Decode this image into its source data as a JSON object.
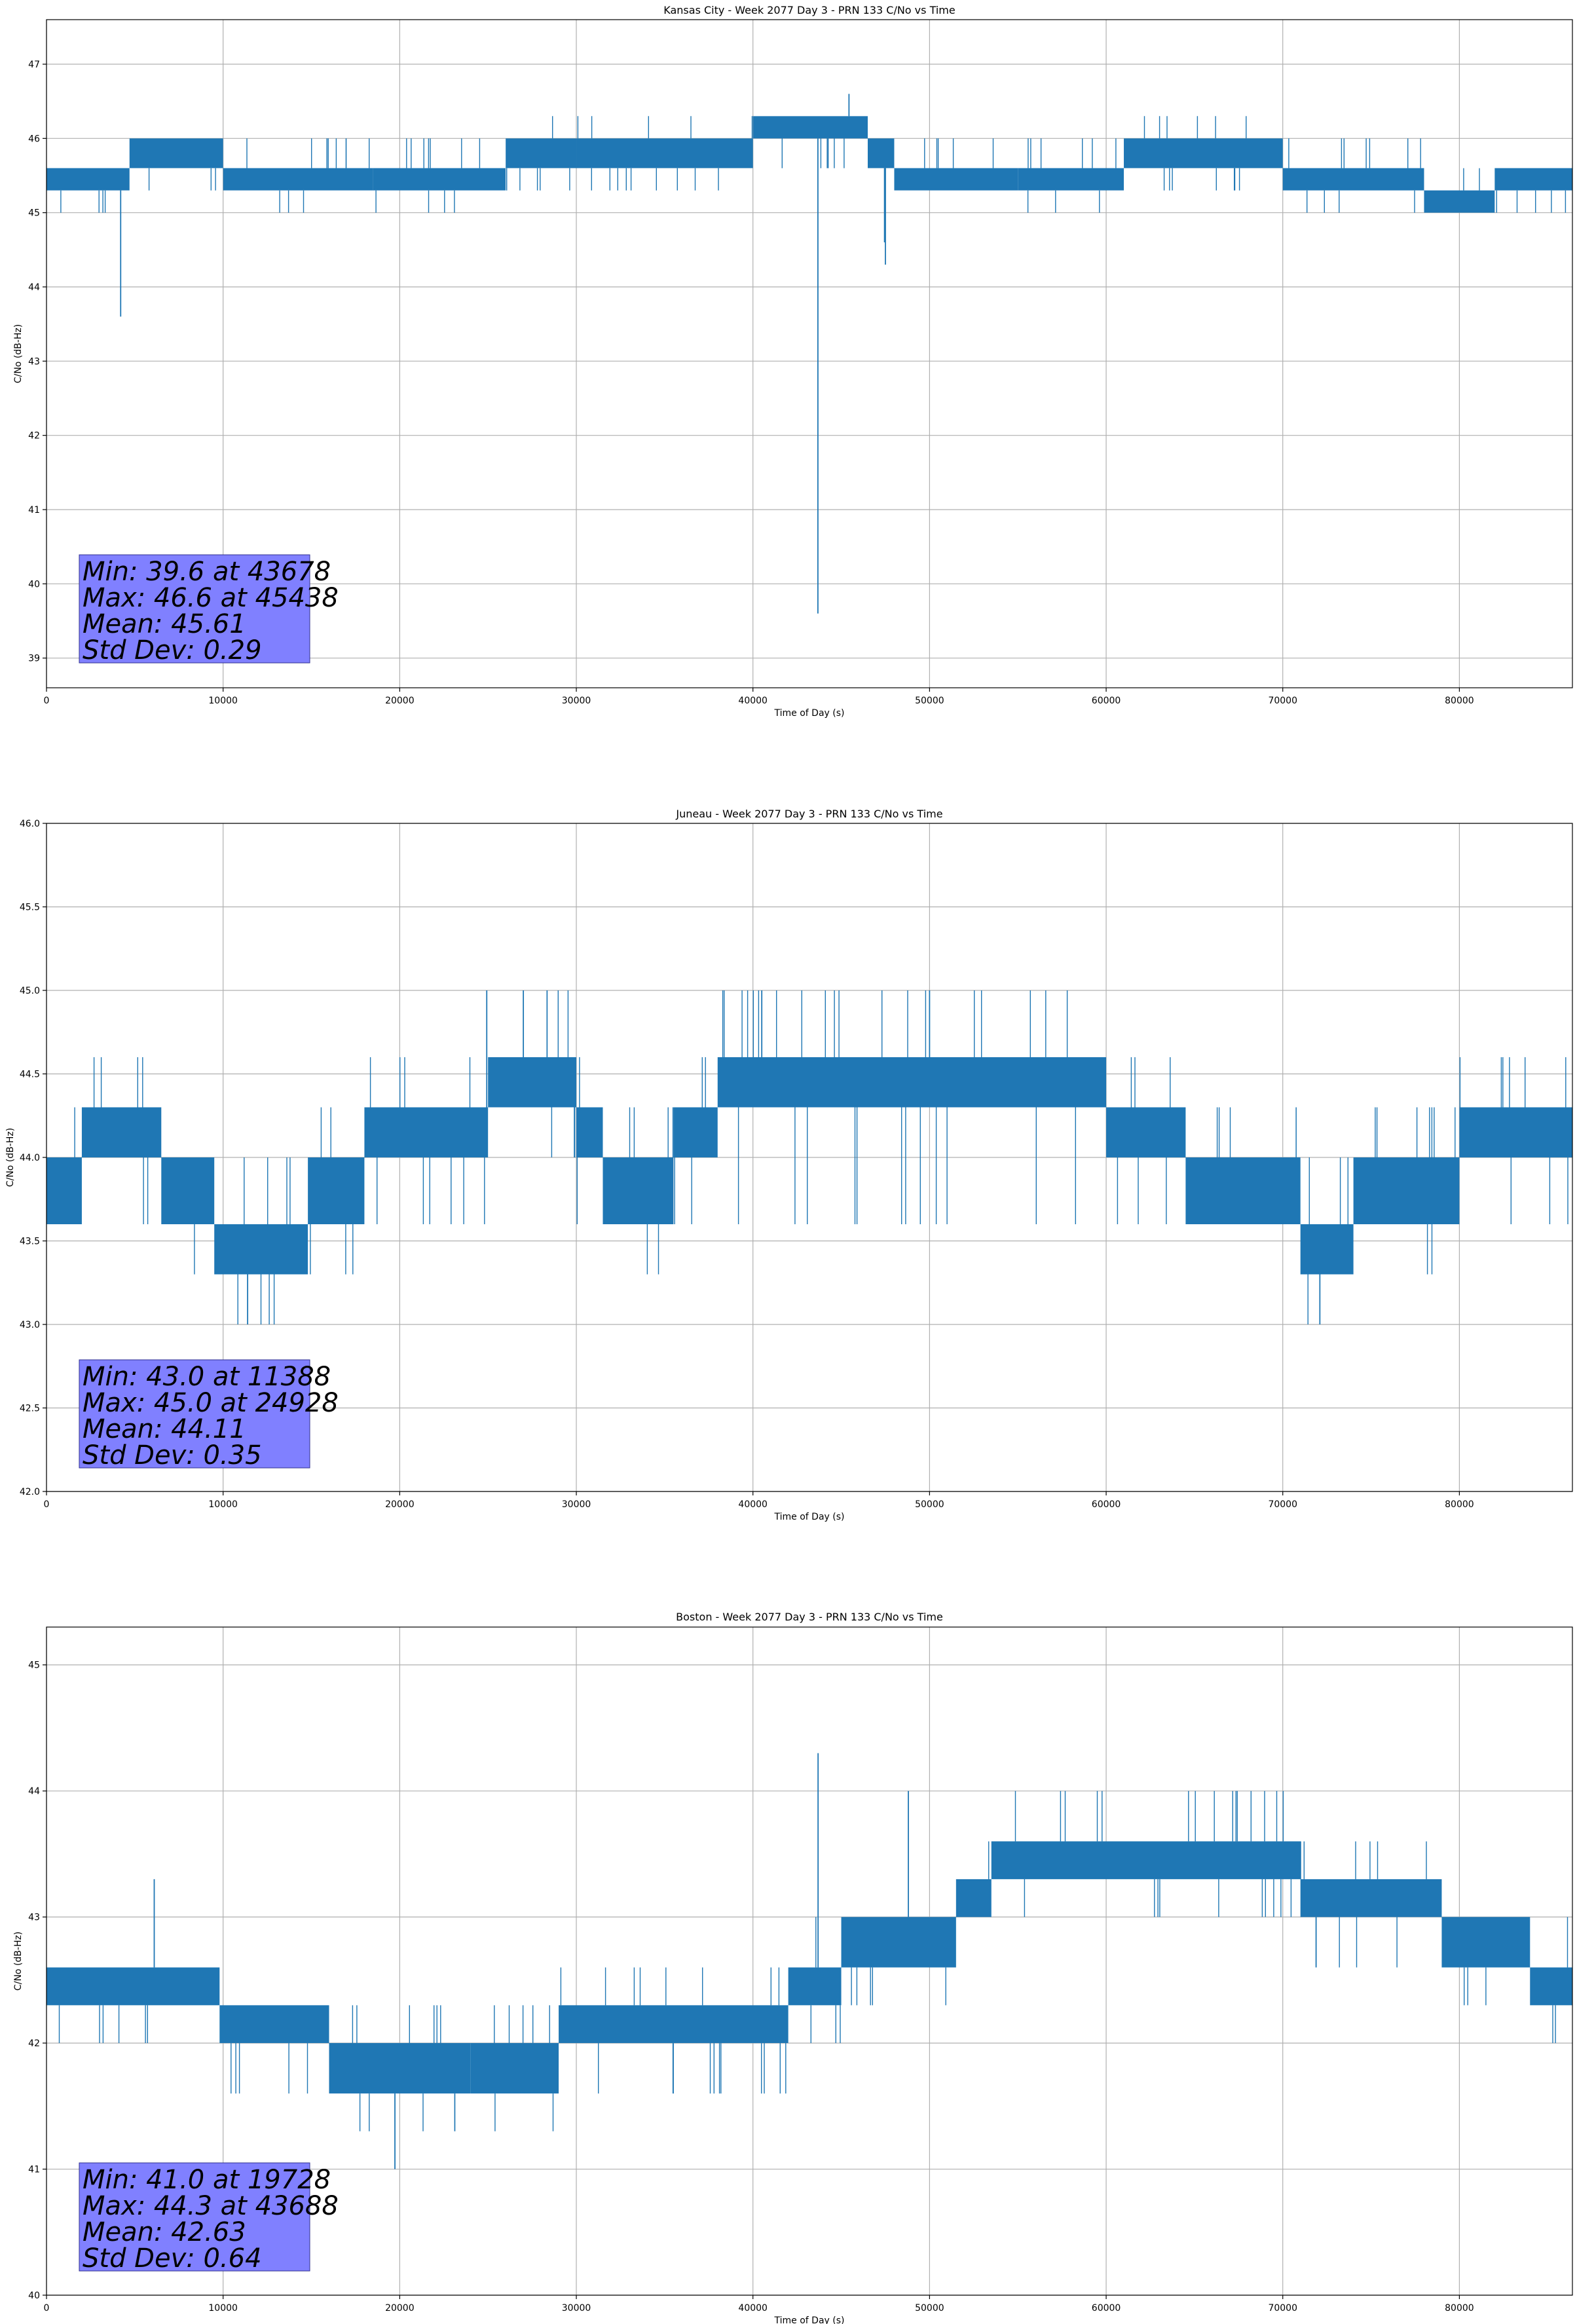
{
  "colors": {
    "line": "#1f77b4",
    "stats_box": "#8080ff",
    "grid": "#b0b0b0"
  },
  "chart_data": [
    {
      "type": "line",
      "title": "Kansas City - Week 2077 Day 3 - PRN 133 C/No vs Time",
      "xlabel": "Time of Day (s)",
      "ylabel": "C/No (dB-Hz)",
      "xlim": [
        0,
        86400
      ],
      "ylim": [
        38.6,
        47.6
      ],
      "xticks": [
        0,
        10000,
        20000,
        30000,
        40000,
        50000,
        60000,
        70000,
        80000
      ],
      "yticks": [
        39,
        40,
        41,
        42,
        43,
        44,
        45,
        46,
        47
      ],
      "ytick_labels": [
        "39",
        "40",
        "41",
        "42",
        "43",
        "44",
        "45",
        "46",
        "47"
      ],
      "grid": true,
      "stats_lines": [
        "Min: 39.6 at 43678",
        "Max: 46.6 at 45438",
        "Mean: 45.61",
        "Std Dev: 0.29"
      ],
      "segments": [
        {
          "x0": 0,
          "x1": 4700,
          "lo": 45.3,
          "hi": 45.6,
          "lo_ext": 45.0,
          "hi_ext": 45.6
        },
        {
          "x0": 4700,
          "x1": 10000,
          "lo": 45.6,
          "hi": 46.0,
          "lo_ext": 45.3,
          "hi_ext": 46.0
        },
        {
          "x0": 10000,
          "x1": 18500,
          "lo": 45.3,
          "hi": 45.6,
          "lo_ext": 45.0,
          "hi_ext": 46.0
        },
        {
          "x0": 18500,
          "x1": 26000,
          "lo": 45.3,
          "hi": 45.6,
          "lo_ext": 45.0,
          "hi_ext": 46.0
        },
        {
          "x0": 26000,
          "x1": 30000,
          "lo": 45.6,
          "hi": 46.0,
          "lo_ext": 45.3,
          "hi_ext": 46.3
        },
        {
          "x0": 30000,
          "x1": 40000,
          "lo": 45.6,
          "hi": 46.0,
          "lo_ext": 45.3,
          "hi_ext": 46.3
        },
        {
          "x0": 40000,
          "x1": 46500,
          "lo": 46.0,
          "hi": 46.3,
          "lo_ext": 45.6,
          "hi_ext": 46.3
        },
        {
          "x0": 46500,
          "x1": 48000,
          "lo": 45.6,
          "hi": 46.0,
          "lo_ext": 45.3,
          "hi_ext": 46.0
        },
        {
          "x0": 48000,
          "x1": 55000,
          "lo": 45.3,
          "hi": 45.6,
          "lo_ext": 45.3,
          "hi_ext": 46.0
        },
        {
          "x0": 55000,
          "x1": 61000,
          "lo": 45.3,
          "hi": 45.6,
          "lo_ext": 45.0,
          "hi_ext": 46.0
        },
        {
          "x0": 61000,
          "x1": 70000,
          "lo": 45.6,
          "hi": 46.0,
          "lo_ext": 45.3,
          "hi_ext": 46.3
        },
        {
          "x0": 70000,
          "x1": 78000,
          "lo": 45.3,
          "hi": 45.6,
          "lo_ext": 45.0,
          "hi_ext": 46.0
        },
        {
          "x0": 78000,
          "x1": 82000,
          "lo": 45.0,
          "hi": 45.3,
          "lo_ext": 45.0,
          "hi_ext": 45.6
        },
        {
          "x0": 82000,
          "x1": 86400,
          "lo": 45.3,
          "hi": 45.6,
          "lo_ext": 45.0,
          "hi_ext": 45.6
        }
      ],
      "spikes": [
        [
          4200,
          43.6
        ],
        [
          43678,
          39.6
        ],
        [
          45438,
          46.6
        ],
        [
          47500,
          44.3
        ],
        [
          47450,
          44.6
        ]
      ]
    },
    {
      "type": "line",
      "title": "Juneau - Week 2077 Day 3 - PRN 133 C/No vs Time",
      "xlabel": "Time of Day (s)",
      "ylabel": "C/No (dB-Hz)",
      "xlim": [
        0,
        86400
      ],
      "ylim": [
        42.0,
        46.0
      ],
      "xticks": [
        0,
        10000,
        20000,
        30000,
        40000,
        50000,
        60000,
        70000,
        80000
      ],
      "yticks": [
        42.0,
        42.5,
        43.0,
        43.5,
        44.0,
        44.5,
        45.0,
        45.5,
        46.0
      ],
      "ytick_labels": [
        "42.0",
        "42.5",
        "43.0",
        "43.5",
        "44.0",
        "44.5",
        "45.0",
        "45.5",
        "46.0"
      ],
      "grid": true,
      "stats_lines": [
        "Min: 43.0 at 11388",
        "Max: 45.0 at 24928",
        "Mean: 44.11",
        "Std Dev: 0.35"
      ],
      "segments": [
        {
          "x0": 0,
          "x1": 2000,
          "lo": 43.6,
          "hi": 44.0,
          "lo_ext": 43.6,
          "hi_ext": 44.3
        },
        {
          "x0": 2000,
          "x1": 6500,
          "lo": 44.0,
          "hi": 44.3,
          "lo_ext": 43.6,
          "hi_ext": 44.6
        },
        {
          "x0": 6500,
          "x1": 9500,
          "lo": 43.6,
          "hi": 44.0,
          "lo_ext": 43.3,
          "hi_ext": 44.0
        },
        {
          "x0": 9500,
          "x1": 14800,
          "lo": 43.3,
          "hi": 43.6,
          "lo_ext": 43.0,
          "hi_ext": 44.0
        },
        {
          "x0": 14800,
          "x1": 18000,
          "lo": 43.6,
          "hi": 44.0,
          "lo_ext": 43.3,
          "hi_ext": 44.3
        },
        {
          "x0": 18000,
          "x1": 25000,
          "lo": 44.0,
          "hi": 44.3,
          "lo_ext": 43.6,
          "hi_ext": 44.6
        },
        {
          "x0": 25000,
          "x1": 30000,
          "lo": 44.3,
          "hi": 44.6,
          "lo_ext": 44.0,
          "hi_ext": 45.0
        },
        {
          "x0": 30000,
          "x1": 31500,
          "lo": 44.0,
          "hi": 44.3,
          "lo_ext": 43.6,
          "hi_ext": 44.6
        },
        {
          "x0": 31500,
          "x1": 35500,
          "lo": 43.6,
          "hi": 44.0,
          "lo_ext": 43.3,
          "hi_ext": 44.3
        },
        {
          "x0": 35500,
          "x1": 38000,
          "lo": 44.0,
          "hi": 44.3,
          "lo_ext": 43.6,
          "hi_ext": 44.6
        },
        {
          "x0": 38000,
          "x1": 60000,
          "lo": 44.3,
          "hi": 44.6,
          "lo_ext": 43.6,
          "hi_ext": 45.0
        },
        {
          "x0": 60000,
          "x1": 64500,
          "lo": 44.0,
          "hi": 44.3,
          "lo_ext": 43.6,
          "hi_ext": 44.6
        },
        {
          "x0": 64500,
          "x1": 71000,
          "lo": 43.6,
          "hi": 44.0,
          "lo_ext": 43.6,
          "hi_ext": 44.3
        },
        {
          "x0": 71000,
          "x1": 74000,
          "lo": 43.3,
          "hi": 43.6,
          "lo_ext": 43.0,
          "hi_ext": 44.0
        },
        {
          "x0": 74000,
          "x1": 80000,
          "lo": 43.6,
          "hi": 44.0,
          "lo_ext": 43.3,
          "hi_ext": 44.3
        },
        {
          "x0": 80000,
          "x1": 86400,
          "lo": 44.0,
          "hi": 44.3,
          "lo_ext": 43.6,
          "hi_ext": 44.6
        }
      ],
      "spikes": [
        [
          11388,
          43.0
        ],
        [
          72100,
          43.0
        ],
        [
          24928,
          45.0
        ],
        [
          27000,
          45.0
        ],
        [
          40500,
          45.0
        ],
        [
          50000,
          45.0
        ]
      ]
    },
    {
      "type": "line",
      "title": "Boston - Week 2077 Day 3 - PRN 133 C/No vs Time",
      "xlabel": "Time of Day (s)",
      "ylabel": "C/No (dB-Hz)",
      "xlim": [
        0,
        86400
      ],
      "ylim": [
        40.0,
        45.3
      ],
      "xticks": [
        0,
        10000,
        20000,
        30000,
        40000,
        50000,
        60000,
        70000,
        80000
      ],
      "yticks": [
        40,
        41,
        42,
        43,
        44,
        45
      ],
      "ytick_labels": [
        "40",
        "41",
        "42",
        "43",
        "44",
        "45"
      ],
      "grid": true,
      "stats_lines": [
        "Min: 41.0 at 19728",
        "Max: 44.3 at 43688",
        "Mean: 42.63",
        "Std Dev: 0.64"
      ],
      "segments": [
        {
          "x0": 0,
          "x1": 9800,
          "lo": 42.3,
          "hi": 42.6,
          "lo_ext": 42.0,
          "hi_ext": 42.6
        },
        {
          "x0": 9800,
          "x1": 16000,
          "lo": 42.0,
          "hi": 42.3,
          "lo_ext": 41.6,
          "hi_ext": 42.3
        },
        {
          "x0": 16000,
          "x1": 24000,
          "lo": 41.6,
          "hi": 42.0,
          "lo_ext": 41.3,
          "hi_ext": 42.3
        },
        {
          "x0": 24000,
          "x1": 29000,
          "lo": 41.6,
          "hi": 42.0,
          "lo_ext": 41.3,
          "hi_ext": 42.3
        },
        {
          "x0": 29000,
          "x1": 42000,
          "lo": 42.0,
          "hi": 42.3,
          "lo_ext": 41.6,
          "hi_ext": 42.6
        },
        {
          "x0": 42000,
          "x1": 45000,
          "lo": 42.3,
          "hi": 42.6,
          "lo_ext": 42.0,
          "hi_ext": 43.0
        },
        {
          "x0": 45000,
          "x1": 51500,
          "lo": 42.6,
          "hi": 43.0,
          "lo_ext": 42.3,
          "hi_ext": 43.0
        },
        {
          "x0": 51500,
          "x1": 53500,
          "lo": 43.0,
          "hi": 43.3,
          "lo_ext": 43.0,
          "hi_ext": 43.6
        },
        {
          "x0": 53500,
          "x1": 71000,
          "lo": 43.3,
          "hi": 43.6,
          "lo_ext": 43.0,
          "hi_ext": 44.0
        },
        {
          "x0": 71000,
          "x1": 79000,
          "lo": 43.0,
          "hi": 43.3,
          "lo_ext": 42.6,
          "hi_ext": 43.6
        },
        {
          "x0": 79000,
          "x1": 84000,
          "lo": 42.6,
          "hi": 43.0,
          "lo_ext": 42.3,
          "hi_ext": 43.0
        },
        {
          "x0": 84000,
          "x1": 86400,
          "lo": 42.3,
          "hi": 42.6,
          "lo_ext": 42.0,
          "hi_ext": 43.0
        }
      ],
      "spikes": [
        [
          19728,
          41.0
        ],
        [
          43688,
          44.3
        ],
        [
          6100,
          43.3
        ],
        [
          48800,
          44.0
        ]
      ]
    }
  ]
}
